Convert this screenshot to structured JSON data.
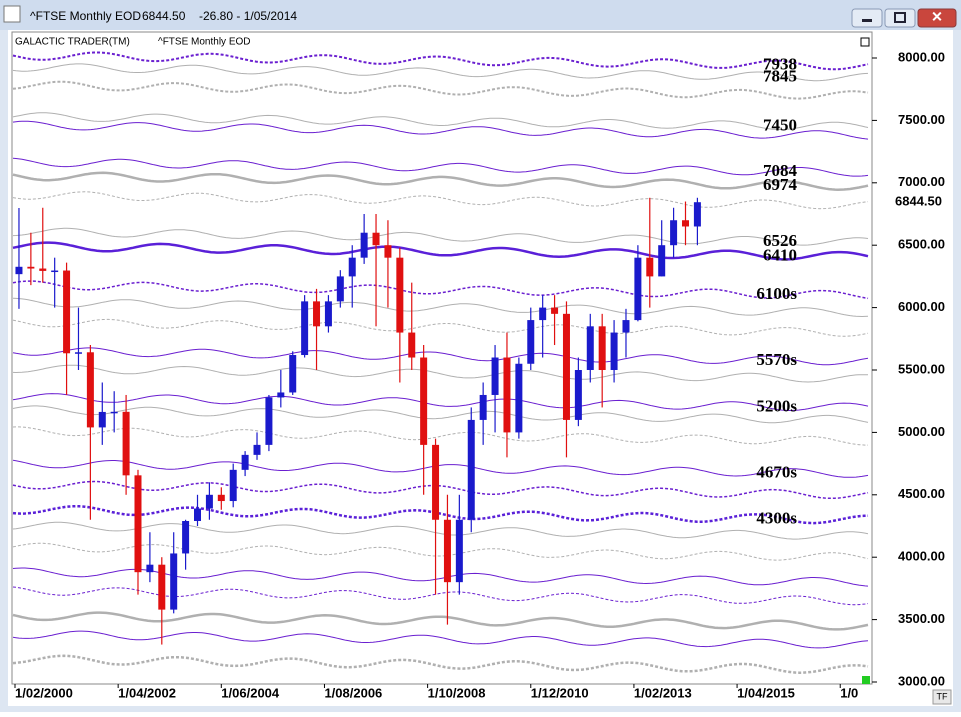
{
  "window": {
    "title": "^FTSE Monthly EOD",
    "price": "6844.50",
    "change": "-26.80 - 1/05/2014",
    "brand": "GALACTIC TRADER(TM)",
    "subtitle": "^FTSE Monthly EOD",
    "corner": "TF"
  },
  "chart_data": {
    "type": "candlestick",
    "xlim": [
      0,
      215
    ],
    "xticks": [
      {
        "value": 0,
        "label": "1/02/2000"
      },
      {
        "value": 26,
        "label": "1/04/2002"
      },
      {
        "value": 52,
        "label": "1/06/2004"
      },
      {
        "value": 78,
        "label": "1/08/2006"
      },
      {
        "value": 104,
        "label": "1/10/2008"
      },
      {
        "value": 130,
        "label": "1/12/2010"
      },
      {
        "value": 156,
        "label": "1/02/2013"
      },
      {
        "value": 182,
        "label": "1/04/2015"
      },
      {
        "value": 208,
        "label": "1/0"
      }
    ],
    "ylim": [
      3000,
      8000
    ],
    "yticks": [
      {
        "value": 3000,
        "label": "3000.00"
      },
      {
        "value": 3500,
        "label": "3500.00"
      },
      {
        "value": 4000,
        "label": "4000.00"
      },
      {
        "value": 4500,
        "label": "4500.00"
      },
      {
        "value": 5000,
        "label": "5000.00"
      },
      {
        "value": 5500,
        "label": "5500.00"
      },
      {
        "value": 6000,
        "label": "6000.00"
      },
      {
        "value": 6500,
        "label": "6500.00"
      },
      {
        "value": 7000,
        "label": "7000.00"
      },
      {
        "value": 7500,
        "label": "7500.00"
      },
      {
        "value": 8000,
        "label": "8000.00"
      }
    ],
    "last_price": {
      "value": 6844.5,
      "label": "6844.50"
    },
    "up_color": "#1a1acc",
    "down_color": "#e01010",
    "x": [
      1,
      4,
      7,
      10,
      13,
      16,
      19,
      22,
      25,
      28,
      31,
      34,
      37,
      40,
      43,
      46,
      49,
      52,
      55,
      58,
      61,
      64,
      67,
      70,
      73,
      76,
      79,
      82,
      85,
      88,
      91,
      94,
      97,
      100,
      103,
      106,
      109,
      112,
      115,
      118,
      121,
      124,
      127,
      130,
      133,
      136,
      139,
      142,
      145,
      148,
      151,
      154,
      157,
      160,
      163,
      166,
      169,
      172
    ],
    "open": [
      6268,
      6327,
      6313,
      6294,
      6297,
      5634,
      5642,
      5040,
      5164,
      5165,
      4656,
      3880,
      3940,
      3580,
      4030,
      4290,
      4390,
      4500,
      4450,
      4700,
      4820,
      4900,
      5280,
      5320,
      5620,
      6050,
      5850,
      6050,
      6250,
      6400,
      6600,
      6500,
      6400,
      5800,
      5600,
      4900,
      4300,
      3800,
      4300,
      5100,
      5300,
      5600,
      5000,
      5550,
      5900,
      6000,
      5950,
      5100,
      5500,
      5850,
      5500,
      5800,
      5900,
      6400,
      6250,
      6500,
      6700,
      6650
    ],
    "high": [
      6798,
      6600,
      6800,
      6400,
      6360,
      6000,
      5700,
      5400,
      5330,
      5300,
      4700,
      4200,
      4000,
      4200,
      4300,
      4500,
      4600,
      4560,
      4750,
      4850,
      5000,
      5300,
      5500,
      5650,
      6100,
      6150,
      6100,
      6300,
      6500,
      6750,
      6750,
      6700,
      6480,
      6200,
      5700,
      4950,
      4500,
      4500,
      5200,
      5400,
      5700,
      5800,
      5600,
      6000,
      6100,
      6100,
      6050,
      5600,
      5950,
      5950,
      5900,
      5990,
      6500,
      6880,
      6700,
      6800,
      6850,
      6880
    ],
    "low": [
      5990,
      6180,
      6200,
      6000,
      5300,
      5500,
      4300,
      4900,
      5000,
      4500,
      3700,
      3800,
      3300,
      3550,
      3900,
      4250,
      4300,
      4380,
      4400,
      4650,
      4780,
      4850,
      5200,
      5300,
      5600,
      5500,
      5800,
      6000,
      6000,
      6350,
      5850,
      6000,
      5400,
      5500,
      4500,
      3700,
      3460,
      3700,
      4200,
      4900,
      5000,
      4800,
      4950,
      5500,
      5600,
      5700,
      4800,
      5050,
      5400,
      5200,
      5400,
      5600,
      5890,
      6000,
      6250,
      6400,
      6500,
      6500
    ],
    "close": [
      6327,
      6313,
      6294,
      6297,
      5634,
      5642,
      5040,
      5164,
      5165,
      4656,
      3880,
      3940,
      3580,
      4030,
      4290,
      4390,
      4500,
      4450,
      4700,
      4820,
      4900,
      5280,
      5320,
      5620,
      6050,
      5850,
      6050,
      6250,
      6400,
      6600,
      6500,
      6400,
      5800,
      5600,
      4900,
      4300,
      3800,
      4300,
      5100,
      5300,
      5600,
      5000,
      5550,
      5900,
      6000,
      5950,
      5100,
      5500,
      5850,
      5500,
      5800,
      5900,
      6400,
      6250,
      6500,
      6700,
      6650,
      6844.5
    ],
    "levels": [
      {
        "value": 7938,
        "color": "#6a1fd0",
        "dashed": true,
        "width": 2
      },
      {
        "value": 7845,
        "color": "#b0b0b0",
        "dashed": false,
        "width": 1
      },
      {
        "value": 7700,
        "color": "#b0b0b0",
        "dashed": true,
        "width": 2
      },
      {
        "value": 7450,
        "color": "#b0b0b0",
        "dashed": false,
        "width": 1
      },
      {
        "value": 7380,
        "color": "#6a1fd0",
        "dashed": false,
        "width": 1
      },
      {
        "value": 7084,
        "color": "#6a1fd0",
        "dashed": false,
        "width": 1
      },
      {
        "value": 6974,
        "color": "#b0b0b0",
        "dashed": false,
        "width": 2.5
      },
      {
        "value": 6820,
        "color": "#b0b0b0",
        "dashed": true,
        "width": 1
      },
      {
        "value": 6526,
        "color": "#b0b0b0",
        "dashed": false,
        "width": 1
      },
      {
        "value": 6410,
        "color": "#5a20d8",
        "dashed": false,
        "width": 2.5
      },
      {
        "value": 6100,
        "color": "#6a1fd0",
        "dashed": true,
        "width": 1.5
      },
      {
        "value": 5960,
        "color": "#b0b0b0",
        "dashed": false,
        "width": 1
      },
      {
        "value": 5800,
        "color": "#b0b0b0",
        "dashed": true,
        "width": 1
      },
      {
        "value": 5570,
        "color": "#6a1fd0",
        "dashed": false,
        "width": 1
      },
      {
        "value": 5430,
        "color": "#b0b0b0",
        "dashed": false,
        "width": 1
      },
      {
        "value": 5200,
        "color": "#6a1fd0",
        "dashed": false,
        "width": 1
      },
      {
        "value": 5100,
        "color": "#b0b0b0",
        "dashed": false,
        "width": 1
      },
      {
        "value": 4930,
        "color": "#b0b0b0",
        "dashed": true,
        "width": 1
      },
      {
        "value": 4670,
        "color": "#6a1fd0",
        "dashed": false,
        "width": 1
      },
      {
        "value": 4500,
        "color": "#6a1fd0",
        "dashed": true,
        "width": 1.5
      },
      {
        "value": 4300,
        "color": "#5a20d8",
        "dashed": true,
        "width": 2.5
      },
      {
        "value": 4170,
        "color": "#b0b0b0",
        "dashed": false,
        "width": 1
      },
      {
        "value": 4000,
        "color": "#b0b0b0",
        "dashed": true,
        "width": 1
      },
      {
        "value": 3800,
        "color": "#6a1fd0",
        "dashed": false,
        "width": 1
      },
      {
        "value": 3650,
        "color": "#6a1fd0",
        "dashed": true,
        "width": 1
      },
      {
        "value": 3450,
        "color": "#b0b0b0",
        "dashed": false,
        "width": 2.5
      },
      {
        "value": 3300,
        "color": "#6a1fd0",
        "dashed": false,
        "width": 1
      },
      {
        "value": 3100,
        "color": "#b0b0b0",
        "dashed": true,
        "width": 2.5
      }
    ],
    "annotations": [
      {
        "value": 7938,
        "label": "7938"
      },
      {
        "value": 7845,
        "label": "7845"
      },
      {
        "value": 7450,
        "label": "7450"
      },
      {
        "value": 7084,
        "label": "7084"
      },
      {
        "value": 6974,
        "label": "6974"
      },
      {
        "value": 6526,
        "label": "6526"
      },
      {
        "value": 6410,
        "label": "6410"
      },
      {
        "value": 6100,
        "label": "6100s"
      },
      {
        "value": 5570,
        "label": "5570s"
      },
      {
        "value": 5200,
        "label": "5200s"
      },
      {
        "value": 4670,
        "label": "4670s"
      },
      {
        "value": 4300,
        "label": "4300s"
      }
    ]
  }
}
